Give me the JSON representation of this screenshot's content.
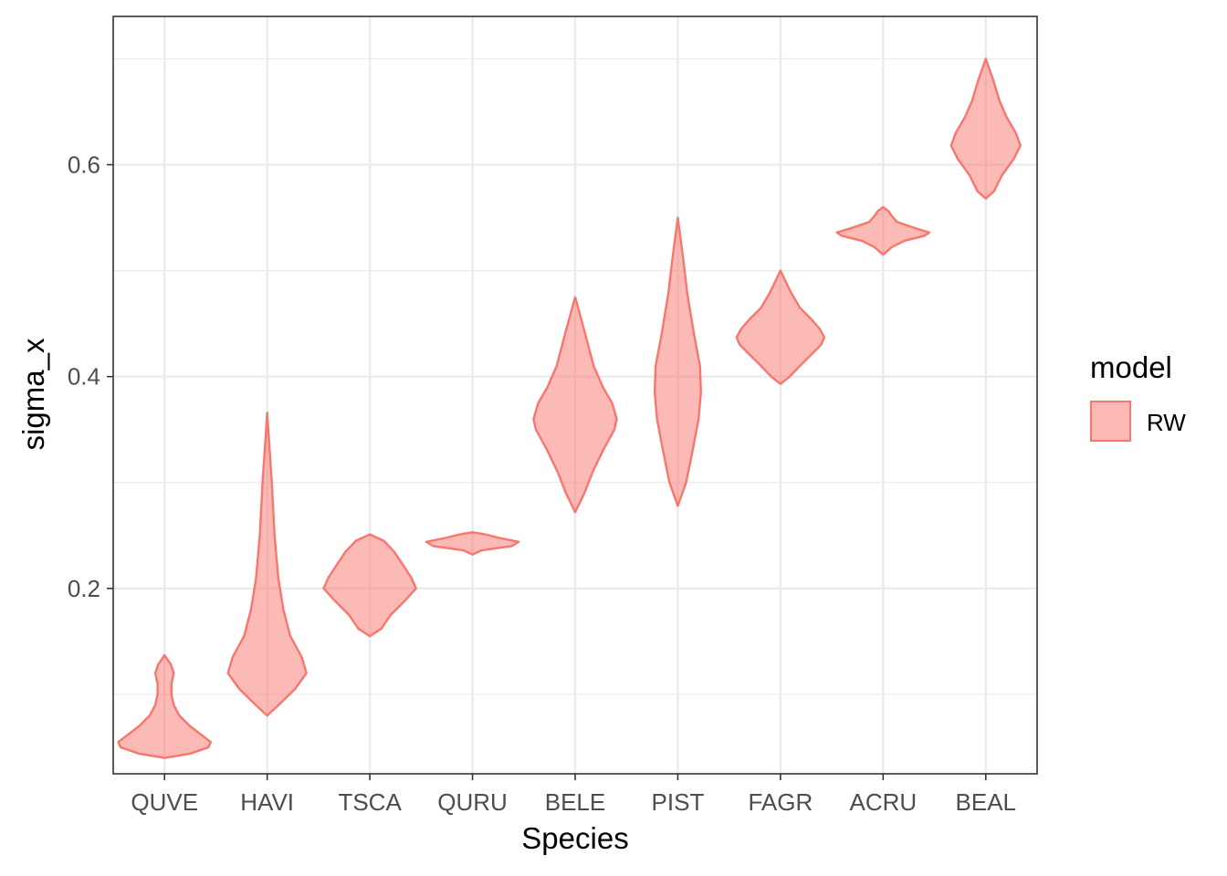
{
  "chart_data": {
    "type": "violin",
    "xlabel": "Species",
    "ylabel": "sigma_x",
    "categories": [
      "QUVE",
      "HAVI",
      "TSCA",
      "QURU",
      "BELE",
      "PIST",
      "FAGR",
      "ACRU",
      "BEAL"
    ],
    "ylim": [
      0.025,
      0.74
    ],
    "yticks": [
      0.2,
      0.4,
      0.6
    ],
    "yticklabels": [
      "0.2",
      "0.4",
      "0.6"
    ],
    "grid": true,
    "legend": {
      "title": "model",
      "position": "right",
      "entries": [
        "RW"
      ]
    },
    "colors": {
      "fill": "#f8766d",
      "fill_opacity": 0.5,
      "stroke": "#f8766d",
      "grid": "#ebebeb",
      "panel_border": "#333333"
    },
    "series": [
      {
        "name": "RW",
        "violins": [
          {
            "category": "QUVE",
            "min": 0.04,
            "max": 0.137,
            "profile": [
              [
                0.04,
                0
              ],
              [
                0.044,
                0.55
              ],
              [
                0.05,
                0.95
              ],
              [
                0.055,
                1.0
              ],
              [
                0.06,
                0.85
              ],
              [
                0.07,
                0.55
              ],
              [
                0.08,
                0.32
              ],
              [
                0.09,
                0.2
              ],
              [
                0.1,
                0.15
              ],
              [
                0.11,
                0.15
              ],
              [
                0.12,
                0.2
              ],
              [
                0.128,
                0.14
              ],
              [
                0.137,
                0
              ]
            ]
          },
          {
            "category": "HAVI",
            "min": 0.08,
            "max": 0.366,
            "profile": [
              [
                0.08,
                0
              ],
              [
                0.09,
                0.25
              ],
              [
                0.105,
                0.6
              ],
              [
                0.12,
                0.85
              ],
              [
                0.135,
                0.75
              ],
              [
                0.155,
                0.5
              ],
              [
                0.18,
                0.35
              ],
              [
                0.21,
                0.24
              ],
              [
                0.25,
                0.16
              ],
              [
                0.3,
                0.1
              ],
              [
                0.366,
                0
              ]
            ]
          },
          {
            "category": "TSCA",
            "min": 0.155,
            "max": 0.251,
            "profile": [
              [
                0.155,
                0
              ],
              [
                0.162,
                0.25
              ],
              [
                0.175,
                0.45
              ],
              [
                0.188,
                0.75
              ],
              [
                0.2,
                1.0
              ],
              [
                0.21,
                0.9
              ],
              [
                0.222,
                0.72
              ],
              [
                0.235,
                0.52
              ],
              [
                0.245,
                0.3
              ],
              [
                0.251,
                0
              ]
            ]
          },
          {
            "category": "QURU",
            "min": 0.232,
            "max": 0.253,
            "profile": [
              [
                0.232,
                0
              ],
              [
                0.236,
                0.2
              ],
              [
                0.24,
                0.85
              ],
              [
                0.244,
                1.0
              ],
              [
                0.248,
                0.55
              ],
              [
                0.251,
                0.28
              ],
              [
                0.253,
                0
              ]
            ]
          },
          {
            "category": "BELE",
            "min": 0.272,
            "max": 0.475,
            "profile": [
              [
                0.272,
                0
              ],
              [
                0.29,
                0.2
              ],
              [
                0.31,
                0.38
              ],
              [
                0.33,
                0.6
              ],
              [
                0.35,
                0.85
              ],
              [
                0.36,
                0.9
              ],
              [
                0.375,
                0.8
              ],
              [
                0.39,
                0.6
              ],
              [
                0.41,
                0.4
              ],
              [
                0.44,
                0.22
              ],
              [
                0.475,
                0
              ]
            ]
          },
          {
            "category": "PIST",
            "min": 0.278,
            "max": 0.55,
            "profile": [
              [
                0.278,
                0
              ],
              [
                0.3,
                0.18
              ],
              [
                0.33,
                0.32
              ],
              [
                0.36,
                0.45
              ],
              [
                0.385,
                0.5
              ],
              [
                0.41,
                0.48
              ],
              [
                0.44,
                0.35
              ],
              [
                0.48,
                0.2
              ],
              [
                0.51,
                0.12
              ],
              [
                0.55,
                0
              ]
            ]
          },
          {
            "category": "FAGR",
            "min": 0.393,
            "max": 0.5,
            "profile": [
              [
                0.393,
                0
              ],
              [
                0.4,
                0.2
              ],
              [
                0.41,
                0.42
              ],
              [
                0.42,
                0.65
              ],
              [
                0.43,
                0.88
              ],
              [
                0.437,
                0.95
              ],
              [
                0.445,
                0.85
              ],
              [
                0.455,
                0.65
              ],
              [
                0.465,
                0.42
              ],
              [
                0.48,
                0.22
              ],
              [
                0.5,
                0
              ]
            ]
          },
          {
            "category": "ACRU",
            "min": 0.515,
            "max": 0.56,
            "profile": [
              [
                0.515,
                0
              ],
              [
                0.522,
                0.18
              ],
              [
                0.528,
                0.45
              ],
              [
                0.533,
                0.9
              ],
              [
                0.536,
                1.0
              ],
              [
                0.54,
                0.7
              ],
              [
                0.546,
                0.3
              ],
              [
                0.552,
                0.18
              ],
              [
                0.556,
                0.12
              ],
              [
                0.56,
                0
              ]
            ]
          },
          {
            "category": "BEAL",
            "min": 0.568,
            "max": 0.7,
            "profile": [
              [
                0.568,
                0
              ],
              [
                0.575,
                0.18
              ],
              [
                0.59,
                0.35
              ],
              [
                0.605,
                0.6
              ],
              [
                0.618,
                0.75
              ],
              [
                0.63,
                0.65
              ],
              [
                0.645,
                0.45
              ],
              [
                0.66,
                0.3
              ],
              [
                0.68,
                0.16
              ],
              [
                0.7,
                0
              ]
            ]
          }
        ]
      }
    ]
  }
}
